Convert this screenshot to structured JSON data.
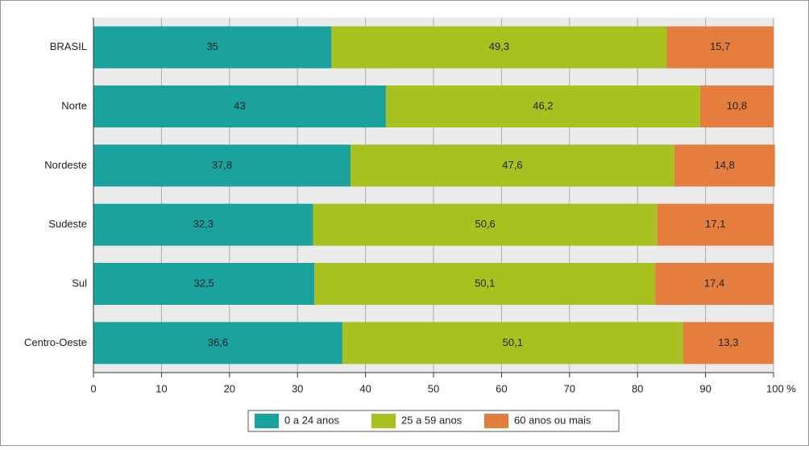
{
  "chart_data": {
    "type": "stacked_bar_horizontal",
    "categories": [
      "BRASIL",
      "Norte",
      "Nordeste",
      "Sudeste",
      "Sul",
      "Centro-Oeste"
    ],
    "series": [
      {
        "name": "0 a 24 anos",
        "color": "#1aa39e",
        "values": [
          35,
          43,
          37.8,
          32.3,
          32.5,
          36.6
        ],
        "value_labels": [
          "35",
          "43",
          "37,8",
          "32,3",
          "32,5",
          "36,6"
        ]
      },
      {
        "name": "25 a 59 anos",
        "color": "#a8c11e",
        "values": [
          49.3,
          46.2,
          47.6,
          50.6,
          50.1,
          50.1
        ],
        "value_labels": [
          "49,3",
          "46,2",
          "47,6",
          "50,6",
          "50,1",
          "50,1"
        ]
      },
      {
        "name": "60 anos ou mais",
        "color": "#e57d3e",
        "values": [
          15.7,
          10.8,
          14.8,
          17.1,
          17.4,
          13.3
        ],
        "value_labels": [
          "15,7",
          "10,8",
          "14,8",
          "17,1",
          "17,4",
          "13,3"
        ]
      }
    ],
    "xlim": [
      0,
      100
    ],
    "xticks": [
      0,
      10,
      20,
      30,
      40,
      50,
      60,
      70,
      80,
      90,
      {
        "value": 100,
        "label": "100 %"
      }
    ],
    "grid": true,
    "legend": "bottom"
  }
}
